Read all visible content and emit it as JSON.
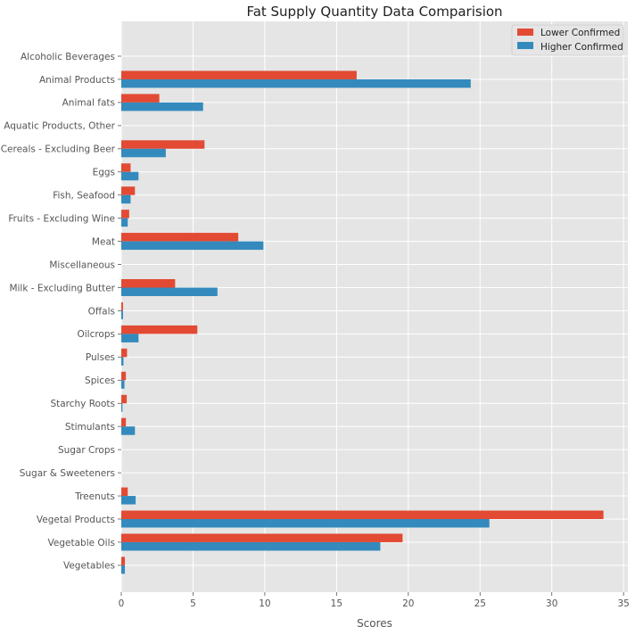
{
  "chart_data": {
    "type": "bar",
    "orientation": "horizontal",
    "title": "Fat Supply Quantity Data Comparision",
    "xlabel": "Scores",
    "ylabel": "",
    "xlim": [
      0,
      35.3
    ],
    "xticks": [
      0,
      5,
      10,
      15,
      20,
      25,
      30,
      35
    ],
    "grid": true,
    "legend_position": "top-right",
    "categories": [
      "Alcoholic Beverages",
      "Animal Products",
      "Animal fats",
      "Aquatic Products, Other",
      "Cereals - Excluding Beer",
      "Eggs",
      "Fish, Seafood",
      "Fruits - Excluding Wine",
      "Meat",
      "Miscellaneous",
      "Milk - Excluding Butter",
      "Offals",
      "Oilcrops",
      "Pulses",
      "Spices",
      "Starchy Roots",
      "Stimulants",
      "Sugar Crops",
      "Sugar & Sweeteners",
      "Treenuts",
      "Vegetal Products",
      "Vegetable Oils",
      "Vegetables"
    ],
    "series": [
      {
        "name": "Lower Confirmed",
        "color": "#E24A33",
        "values": [
          0,
          16.4,
          2.65,
          0,
          5.8,
          0.65,
          0.95,
          0.55,
          8.15,
          0,
          3.75,
          0.12,
          5.3,
          0.4,
          0.32,
          0.38,
          0.32,
          0,
          0,
          0.45,
          33.6,
          19.6,
          0.25
        ]
      },
      {
        "name": "Higher Confirmed",
        "color": "#348ABD",
        "values": [
          0,
          24.35,
          5.7,
          0,
          3.1,
          1.2,
          0.65,
          0.45,
          9.9,
          0,
          6.7,
          0.12,
          1.2,
          0.15,
          0.22,
          0.08,
          0.95,
          0,
          0,
          1.0,
          25.65,
          18.05,
          0.25
        ]
      }
    ]
  }
}
